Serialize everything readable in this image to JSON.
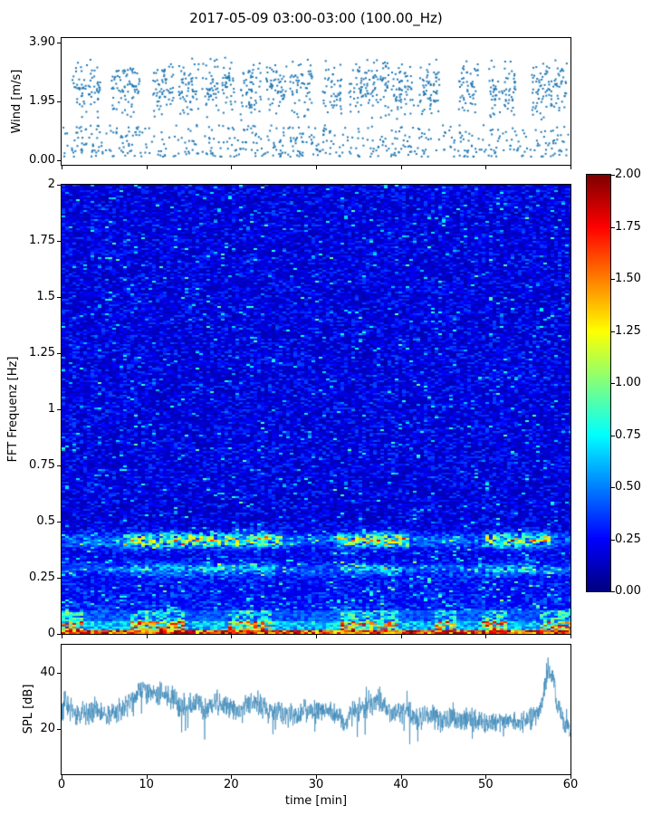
{
  "figure": {
    "title": "2017-05-09 03:00-03:00 (100.00_Hz)",
    "background": "#ffffff"
  },
  "chart_data": [
    {
      "id": "wind",
      "type": "scatter",
      "ylabel": "Wind [m/s]",
      "xlim": [
        0,
        60
      ],
      "ylim": [
        -0.15,
        4.05
      ],
      "yticks": [
        3.9,
        1.95,
        0.0
      ],
      "ytick_labels": [
        "3.90",
        "1.95",
        "0.00"
      ],
      "marker_color": "#1f77b4",
      "marker_size_px": 2,
      "seed": 20170509,
      "background_points": 380,
      "gust_blocks": [
        [
          1.2,
          4.6
        ],
        [
          5.9,
          9.2
        ],
        [
          10.8,
          13.2
        ],
        [
          13.8,
          16.2
        ],
        [
          16.6,
          18.5
        ],
        [
          18.9,
          20.6
        ],
        [
          21.0,
          23.6
        ],
        [
          24.0,
          26.6
        ],
        [
          26.9,
          29.6
        ],
        [
          30.8,
          33.0
        ],
        [
          33.9,
          38.6
        ],
        [
          38.9,
          41.6
        ],
        [
          42.0,
          44.6
        ],
        [
          46.8,
          49.1
        ],
        [
          50.4,
          53.6
        ],
        [
          55.4,
          59.6
        ]
      ],
      "gust_density_per_min": 26,
      "gust_value_range": [
        1.3,
        3.45
      ]
    },
    {
      "id": "spectrogram",
      "type": "heatmap",
      "ylabel": "FFT Frequenz [Hz]",
      "xlim": [
        0,
        60
      ],
      "ylim": [
        0,
        2
      ],
      "yticks": [
        2,
        1.75,
        1.5,
        1.25,
        1,
        0.75,
        0.5,
        0.25,
        0
      ],
      "ytick_labels": [
        "2",
        "1.75",
        "1.5",
        "1.25",
        "1",
        "0.75",
        "0.5",
        "0.25",
        "0"
      ],
      "colormap": "jet",
      "vmin": 0,
      "vmax": 2,
      "seed": 987654321,
      "background_level": 0.22,
      "features": {
        "dc_band": {
          "freq": [
            0,
            0.013
          ],
          "level": [
            1.25,
            2.0
          ]
        },
        "low_band": {
          "freq": [
            0.013,
            0.1
          ],
          "level": [
            0.4,
            1.6
          ],
          "active_intervals_min": [
            [
              0,
              2.5
            ],
            [
              8,
              14.5
            ],
            [
              19.5,
              24.5
            ],
            [
              33,
              39.5
            ],
            [
              44,
              46.5
            ],
            [
              49.5,
              52.5
            ],
            [
              56.5,
              60
            ]
          ]
        },
        "band_0p41Hz": {
          "freq_center": 0.415,
          "freq_sigma": 0.022,
          "active_intervals_min": [
            [
              7,
              26
            ],
            [
              32.5,
              41
            ],
            [
              50,
              57.5
            ]
          ]
        },
        "band_0p28Hz": {
          "freq_center": 0.285,
          "freq_sigma": 0.018,
          "active_intervals_min": [
            [
              8,
              25
            ],
            [
              33,
              40
            ],
            [
              50,
              56
            ]
          ]
        }
      },
      "colorbar": {
        "ticks": [
          2.0,
          1.75,
          1.5,
          1.25,
          1.0,
          0.75,
          0.5,
          0.25,
          0.0
        ],
        "tick_labels": [
          "2.00",
          "1.75",
          "1.50",
          "1.25",
          "1.00",
          "0.75",
          "0.50",
          "0.25",
          "0.00"
        ]
      }
    },
    {
      "id": "spl",
      "type": "line",
      "ylabel": "SPL [dB]",
      "xlabel": "time [min]",
      "xlim": [
        0,
        60
      ],
      "ylim": [
        4,
        50
      ],
      "yticks": [
        40,
        20
      ],
      "ytick_labels": [
        "40",
        "20"
      ],
      "xticks": [
        0,
        10,
        20,
        30,
        40,
        50,
        60
      ],
      "xtick_labels": [
        "0",
        "10",
        "20",
        "30",
        "40",
        "50",
        "60"
      ],
      "line_color": "#3a87b7",
      "seed": 55555,
      "noise_db": 4.5,
      "envelope": [
        [
          0,
          27
        ],
        [
          0.5,
          30
        ],
        [
          1,
          27
        ],
        [
          2,
          25
        ],
        [
          3,
          26
        ],
        [
          4,
          27
        ],
        [
          5,
          25
        ],
        [
          6,
          26
        ],
        [
          7,
          27
        ],
        [
          8,
          29
        ],
        [
          9,
          33
        ],
        [
          9.5,
          35
        ],
        [
          10,
          33
        ],
        [
          11,
          32
        ],
        [
          12,
          33
        ],
        [
          13,
          31
        ],
        [
          14,
          28
        ],
        [
          15,
          29
        ],
        [
          16,
          29
        ],
        [
          17,
          27
        ],
        [
          18,
          29
        ],
        [
          19,
          28
        ],
        [
          20,
          28
        ],
        [
          21,
          26
        ],
        [
          22,
          28
        ],
        [
          23,
          30
        ],
        [
          24,
          27
        ],
        [
          25,
          25
        ],
        [
          26,
          26
        ],
        [
          27,
          25
        ],
        [
          28,
          26
        ],
        [
          29,
          27
        ],
        [
          30,
          26
        ],
        [
          31,
          27
        ],
        [
          32,
          26
        ],
        [
          33,
          23
        ],
        [
          33.5,
          21
        ],
        [
          34,
          26
        ],
        [
          35,
          27
        ],
        [
          36,
          28
        ],
        [
          37,
          30
        ],
        [
          37.5,
          31
        ],
        [
          38,
          28
        ],
        [
          39,
          25
        ],
        [
          40,
          27
        ],
        [
          41,
          25
        ],
        [
          42,
          24
        ],
        [
          43,
          25
        ],
        [
          44,
          24
        ],
        [
          45,
          23
        ],
        [
          46,
          25
        ],
        [
          47,
          23
        ],
        [
          48,
          24
        ],
        [
          49,
          23
        ],
        [
          50,
          22
        ],
        [
          51,
          23
        ],
        [
          52,
          22
        ],
        [
          53,
          23
        ],
        [
          54,
          22
        ],
        [
          55,
          23
        ],
        [
          56,
          25
        ],
        [
          56.8,
          32
        ],
        [
          57.3,
          41
        ],
        [
          57.8,
          39
        ],
        [
          58.3,
          31
        ],
        [
          59,
          24
        ],
        [
          59.5,
          22
        ],
        [
          60,
          20
        ]
      ]
    }
  ]
}
